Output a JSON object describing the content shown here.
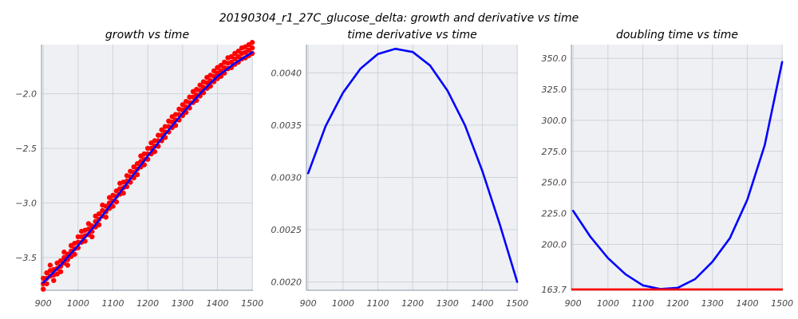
{
  "figure": {
    "suptitle": "20190304_r1_27C_glucose_delta: growth and derivative vs time"
  },
  "chart_data": [
    {
      "type": "scatter",
      "title": "growth vs time",
      "xlim": [
        895,
        1502
      ],
      "ylim": [
        -3.8,
        -1.55
      ],
      "x_ticks": [
        900,
        1000,
        1100,
        1200,
        1300,
        1400,
        1500
      ],
      "x_tick_labels": [
        "900",
        "1000",
        "1100",
        "1200",
        "1300",
        "1400",
        "1500"
      ],
      "y_ticks": [
        -3.5,
        -3.0,
        -2.5,
        -2.0
      ],
      "y_tick_labels": [
        "−3.5",
        "−3.0",
        "−2.5",
        "−2.0"
      ],
      "grid": true,
      "series": [
        {
          "kind": "points",
          "color": "#ff0000",
          "x": [
            900,
            910,
            920,
            930,
            940,
            950,
            960,
            970,
            980,
            990,
            1000,
            1010,
            1020,
            1030,
            1040,
            1050,
            1060,
            1070,
            1080,
            1090,
            1100,
            1110,
            1120,
            1130,
            1140,
            1150,
            1160,
            1170,
            1180,
            1190,
            1200,
            1210,
            1220,
            1230,
            1240,
            1250,
            1260,
            1270,
            1280,
            1290,
            1300,
            1310,
            1320,
            1330,
            1340,
            1350,
            1360,
            1370,
            1380,
            1390,
            1400,
            1410,
            1420,
            1430,
            1440,
            1450,
            1460,
            1470,
            1480,
            1490,
            1500
          ],
          "y": [
            -3.74,
            -3.69,
            -3.62,
            -3.66,
            -3.6,
            -3.58,
            -3.5,
            -3.52,
            -3.44,
            -3.42,
            -3.36,
            -3.31,
            -3.3,
            -3.24,
            -3.26,
            -3.17,
            -3.15,
            -3.07,
            -3.08,
            -3.0,
            -2.98,
            -2.94,
            -2.87,
            -2.86,
            -2.8,
            -2.76,
            -2.72,
            -2.69,
            -2.62,
            -2.6,
            -2.55,
            -2.5,
            -2.48,
            -2.43,
            -2.38,
            -2.35,
            -2.3,
            -2.26,
            -2.24,
            -2.19,
            -2.15,
            -2.12,
            -2.08,
            -2.03,
            -2.01,
            -1.97,
            -1.94,
            -1.9,
            -1.88,
            -1.84,
            -1.81,
            -1.79,
            -1.76,
            -1.72,
            -1.71,
            -1.68,
            -1.66,
            -1.63,
            -1.62,
            -1.6,
            -1.58
          ]
        },
        {
          "kind": "line",
          "color": "#0000ff",
          "x": [
            900,
            950,
            1000,
            1050,
            1100,
            1150,
            1200,
            1250,
            1300,
            1350,
            1400,
            1450,
            1500
          ],
          "y": [
            -3.73,
            -3.57,
            -3.39,
            -3.2,
            -2.99,
            -2.78,
            -2.57,
            -2.37,
            -2.18,
            -2.0,
            -1.84,
            -1.72,
            -1.62
          ]
        }
      ]
    },
    {
      "type": "line",
      "title": "time derivative vs time",
      "xlim": [
        895,
        1502
      ],
      "ylim": [
        0.00192,
        0.00427
      ],
      "x_ticks": [
        900,
        1000,
        1100,
        1200,
        1300,
        1400,
        1500
      ],
      "x_tick_labels": [
        "900",
        "1000",
        "1100",
        "1200",
        "1300",
        "1400",
        "1500"
      ],
      "y_ticks": [
        0.002,
        0.0025,
        0.003,
        0.0035,
        0.004
      ],
      "y_tick_labels": [
        "0.0020",
        "0.0025",
        "0.0030",
        "0.0035",
        "0.0040"
      ],
      "grid": true,
      "series": [
        {
          "kind": "line",
          "color": "#0000ff",
          "x": [
            900,
            950,
            1000,
            1050,
            1100,
            1150,
            1200,
            1250,
            1300,
            1350,
            1400,
            1450,
            1500
          ],
          "y": [
            0.00304,
            0.00349,
            0.00381,
            0.00404,
            0.00418,
            0.00423,
            0.0042,
            0.00407,
            0.00383,
            0.0035,
            0.00306,
            0.00255,
            0.002
          ]
        }
      ]
    },
    {
      "type": "line",
      "title": "doubling time vs time",
      "xlim": [
        895,
        1502
      ],
      "ylim": [
        163.0,
        361.0
      ],
      "x_ticks": [
        900,
        1000,
        1100,
        1200,
        1300,
        1400,
        1500
      ],
      "x_tick_labels": [
        "900",
        "1000",
        "1100",
        "1200",
        "1300",
        "1400",
        "1500"
      ],
      "y_ticks": [
        163.7,
        200.0,
        225.0,
        250.0,
        275.0,
        300.0,
        325.0,
        350.0
      ],
      "y_tick_labels": [
        "163.7",
        "200.0",
        "225.0",
        "250.0",
        "275.0",
        "300.0",
        "325.0",
        "350.0"
      ],
      "grid": true,
      "series": [
        {
          "kind": "line",
          "color": "#0000ff",
          "x": [
            900,
            950,
            1000,
            1050,
            1100,
            1150,
            1200,
            1250,
            1300,
            1350,
            1400,
            1450,
            1500
          ],
          "y": [
            227,
            206,
            189,
            176,
            167,
            164,
            165,
            172,
            186,
            205,
            236,
            280,
            347
          ]
        },
        {
          "kind": "hline",
          "color": "#ff0000",
          "y": 163.7
        }
      ]
    }
  ]
}
